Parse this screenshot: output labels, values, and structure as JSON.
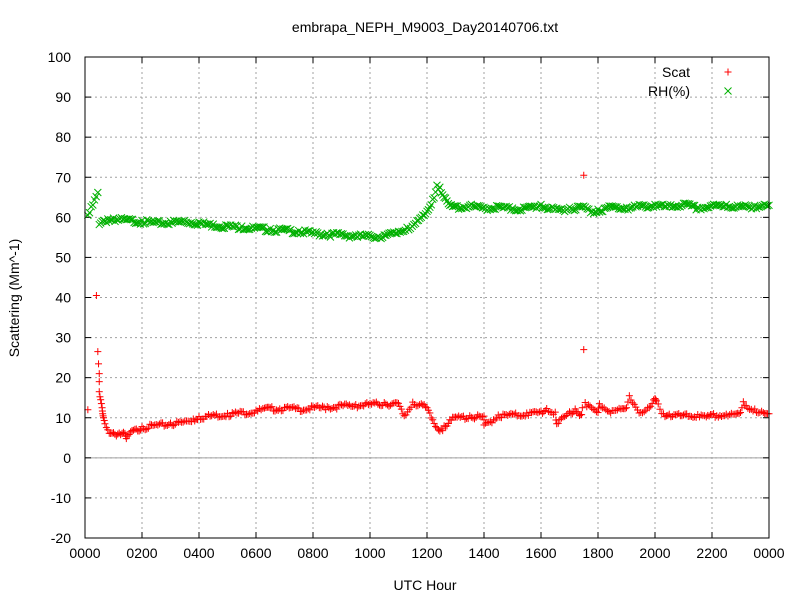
{
  "chart_data": {
    "type": "scatter",
    "title": "embrapa_NEPH_M9003_Day20140706.txt",
    "xlabel": "UTC Hour",
    "ylabel": "Scattering (Mm^-1)",
    "xlim": [
      0,
      24
    ],
    "ylim": [
      -20,
      100
    ],
    "x_ticks": [
      {
        "value": 0,
        "label": "0000"
      },
      {
        "value": 2,
        "label": "0200"
      },
      {
        "value": 4,
        "label": "0400"
      },
      {
        "value": 6,
        "label": "0600"
      },
      {
        "value": 8,
        "label": "0800"
      },
      {
        "value": 10,
        "label": "1000"
      },
      {
        "value": 12,
        "label": "1200"
      },
      {
        "value": 14,
        "label": "1400"
      },
      {
        "value": 16,
        "label": "1600"
      },
      {
        "value": 18,
        "label": "1800"
      },
      {
        "value": 20,
        "label": "2000"
      },
      {
        "value": 22,
        "label": "2200"
      },
      {
        "value": 24,
        "label": "0000"
      }
    ],
    "y_ticks": [
      -20,
      -10,
      0,
      10,
      20,
      30,
      40,
      50,
      60,
      70,
      80,
      90,
      100
    ],
    "grid": true,
    "zero_line": true,
    "legend_position": "top-right",
    "series": [
      {
        "name": "Scat",
        "marker": "plus",
        "color": "#ff0000",
        "points": [
          [
            0.1,
            12
          ],
          [
            0.4,
            40.5
          ],
          [
            0.45,
            26.5
          ],
          [
            0.5,
            21
          ],
          [
            0.5,
            16.5
          ],
          [
            0.55,
            14.5
          ],
          [
            0.6,
            12.5
          ],
          [
            0.62,
            11
          ],
          [
            0.65,
            10
          ],
          [
            0.7,
            8.5
          ],
          [
            0.8,
            7
          ],
          [
            1.0,
            6.3
          ],
          [
            1.2,
            6.2
          ],
          [
            1.4,
            6.1
          ],
          [
            1.45,
            4.8
          ],
          [
            1.6,
            6.5
          ],
          [
            1.8,
            7.2
          ],
          [
            2.0,
            7.8
          ],
          [
            2.5,
            8.3
          ],
          [
            3.0,
            8.7
          ],
          [
            3.5,
            9.2
          ],
          [
            3.8,
            9.7
          ],
          [
            4.0,
            10.3
          ],
          [
            4.5,
            10.8
          ],
          [
            5.0,
            11.1
          ],
          [
            5.5,
            11.5
          ],
          [
            6.0,
            11.9
          ],
          [
            6.3,
            12.4
          ],
          [
            6.5,
            12.5
          ],
          [
            7.0,
            12.6
          ],
          [
            7.5,
            12.4
          ],
          [
            8.0,
            12.7
          ],
          [
            8.5,
            12.8
          ],
          [
            9.0,
            13.2
          ],
          [
            9.5,
            13.3
          ],
          [
            10.0,
            13.6
          ],
          [
            10.5,
            13.8
          ],
          [
            11.0,
            13.6
          ],
          [
            11.2,
            10.5
          ],
          [
            11.5,
            13.9
          ],
          [
            11.8,
            13.5
          ],
          [
            12.0,
            12.5
          ],
          [
            12.2,
            9.5
          ],
          [
            12.35,
            7.5
          ],
          [
            12.5,
            7.2
          ],
          [
            12.6,
            8
          ],
          [
            12.8,
            9.5
          ],
          [
            13.0,
            10.2
          ],
          [
            13.5,
            10.5
          ],
          [
            14.0,
            10.4
          ],
          [
            14.0,
            8.2
          ],
          [
            14.5,
            10.7
          ],
          [
            15.0,
            10.9
          ],
          [
            15.5,
            11.2
          ],
          [
            16.0,
            11.6
          ],
          [
            16.2,
            12.3
          ],
          [
            16.5,
            11.4
          ],
          [
            16.55,
            8.5
          ],
          [
            17.0,
            11.5
          ],
          [
            17.2,
            12.2
          ],
          [
            17.4,
            10.8
          ],
          [
            17.45,
            12.5
          ],
          [
            17.5,
            70.5
          ],
          [
            17.5,
            27
          ],
          [
            17.55,
            13.8
          ],
          [
            18.0,
            11.3
          ],
          [
            18.05,
            13.5
          ],
          [
            18.5,
            11.8
          ],
          [
            18.8,
            12.2
          ],
          [
            19.0,
            12.5
          ],
          [
            19.1,
            15.5
          ],
          [
            19.5,
            11.3
          ],
          [
            19.8,
            12.5
          ],
          [
            20.0,
            14.8
          ],
          [
            20.05,
            14.2
          ],
          [
            20.3,
            11
          ],
          [
            20.5,
            10.9
          ],
          [
            21.0,
            10.7
          ],
          [
            21.5,
            10.8
          ],
          [
            21.8,
            10.2
          ],
          [
            22.0,
            10.8
          ],
          [
            22.5,
            10.9
          ],
          [
            22.8,
            10.9
          ],
          [
            23.0,
            11.3
          ],
          [
            23.1,
            14
          ],
          [
            23.2,
            13
          ],
          [
            23.5,
            12.2
          ],
          [
            23.8,
            11.3
          ],
          [
            24.0,
            11
          ]
        ]
      },
      {
        "name": "RH(%)",
        "marker": "cross",
        "color": "#00b000",
        "points": [
          [
            0.1,
            60.5
          ],
          [
            0.45,
            66.2
          ],
          [
            0.5,
            58.2
          ],
          [
            0.6,
            59
          ],
          [
            0.8,
            59.6
          ],
          [
            1.0,
            59.8
          ],
          [
            1.5,
            59.5
          ],
          [
            2.0,
            59.2
          ],
          [
            2.5,
            58.8
          ],
          [
            3.0,
            59
          ],
          [
            3.5,
            59.2
          ],
          [
            4.0,
            58.8
          ],
          [
            4.5,
            58.3
          ],
          [
            5.0,
            58
          ],
          [
            5.5,
            57.8
          ],
          [
            6.0,
            57.5
          ],
          [
            6.5,
            57.2
          ],
          [
            7.0,
            57
          ],
          [
            7.5,
            56.7
          ],
          [
            8.0,
            56.3
          ],
          [
            8.5,
            56
          ],
          [
            9.0,
            55.9
          ],
          [
            9.5,
            55.6
          ],
          [
            10.0,
            55.5
          ],
          [
            10.5,
            55.6
          ],
          [
            11.0,
            56.5
          ],
          [
            11.3,
            57.5
          ],
          [
            11.6,
            58.5
          ],
          [
            11.8,
            60
          ],
          [
            12.0,
            61.5
          ],
          [
            12.2,
            64.5
          ],
          [
            12.35,
            68
          ],
          [
            12.45,
            67.5
          ],
          [
            12.6,
            65
          ],
          [
            12.8,
            63
          ],
          [
            13.0,
            62.8
          ],
          [
            13.5,
            63
          ],
          [
            14.0,
            62.5
          ],
          [
            14.5,
            62.8
          ],
          [
            15.0,
            62.3
          ],
          [
            15.5,
            62.5
          ],
          [
            16.0,
            63.2
          ],
          [
            16.5,
            62
          ],
          [
            17.0,
            62.5
          ],
          [
            17.5,
            62.8
          ],
          [
            17.8,
            61.5
          ],
          [
            18.0,
            62
          ],
          [
            18.5,
            62.8
          ],
          [
            19.0,
            62.5
          ],
          [
            19.5,
            63
          ],
          [
            20.0,
            63.2
          ],
          [
            20.5,
            62.8
          ],
          [
            21.0,
            63.5
          ],
          [
            21.5,
            62.5
          ],
          [
            22.0,
            63
          ],
          [
            22.5,
            63.2
          ],
          [
            23.0,
            62.8
          ],
          [
            23.5,
            63
          ],
          [
            24.0,
            63
          ]
        ]
      }
    ]
  }
}
